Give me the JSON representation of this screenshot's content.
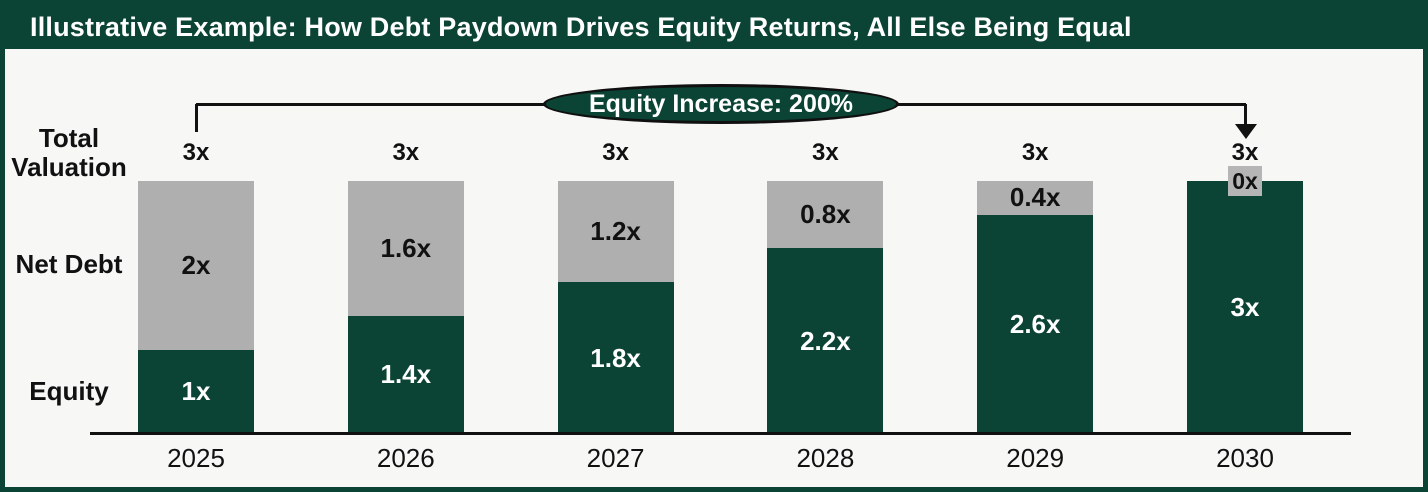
{
  "header": {
    "title": "Illustrative Example: How Debt Paydown Drives Equity Returns, All Else Being Equal"
  },
  "row_labels": {
    "total_valuation": "Total\nValuation",
    "net_debt": "Net Debt",
    "equity": "Equity"
  },
  "colors": {
    "accent_green": "#0B4334",
    "neutral_gray": "#AFAFAF",
    "zero_box_gray": "#B5B5B5",
    "background": "#F7F7F6",
    "text_dark": "#111111",
    "text_light": "#FFFFFF"
  },
  "chart_data": {
    "type": "bar",
    "stacked": true,
    "title": "Illustrative Example: How Debt Paydown Drives Equity Returns, All Else Being Equal",
    "annotation": "Equity Increase: 200%",
    "categories": [
      "2025",
      "2026",
      "2027",
      "2028",
      "2029",
      "2030"
    ],
    "series": [
      {
        "name": "Equity",
        "color": "#0B4334",
        "values": [
          1,
          1.4,
          1.8,
          2.2,
          2.6,
          3
        ],
        "labels": [
          "1x",
          "1.4x",
          "1.8x",
          "2.2x",
          "2.6x",
          "3x"
        ]
      },
      {
        "name": "Net Debt",
        "color": "#AFAFAF",
        "values": [
          2,
          1.6,
          1.2,
          0.8,
          0.4,
          0
        ],
        "labels": [
          "2x",
          "1.6x",
          "1.2x",
          "0.8x",
          "0.4x",
          "0x"
        ]
      }
    ],
    "totals": [
      "3x",
      "3x",
      "3x",
      "3x",
      "3x",
      "3x"
    ],
    "total_row_label": "Total Valuation",
    "ylim": [
      0,
      3
    ],
    "unit_suffix": "x",
    "legend_position": "left-row-labels",
    "grid": false
  }
}
